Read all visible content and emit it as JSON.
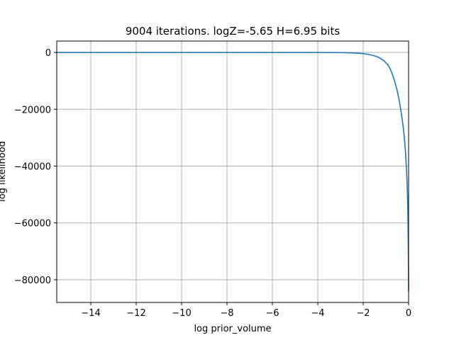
{
  "chart_data": {
    "type": "line",
    "title": "9004 iterations. logZ=-5.65 H=6.95 bits",
    "xlabel": "log prior_volume",
    "ylabel": "log likelihood",
    "xlim": [
      -15.5,
      0
    ],
    "ylim": [
      -88000,
      4000
    ],
    "xticks": [
      -14,
      -12,
      -10,
      -8,
      -6,
      -4,
      -2,
      0
    ],
    "xtick_labels": [
      "−14",
      "−12",
      "−10",
      "−8",
      "−6",
      "−4",
      "−2",
      "0"
    ],
    "yticks": [
      0,
      -20000,
      -40000,
      -60000,
      -80000
    ],
    "ytick_labels": [
      "0",
      "−20000",
      "−40000",
      "−60000",
      "−80000"
    ],
    "grid": true,
    "series": [
      {
        "color": "#1f77b4",
        "x": [
          -15.5,
          -14,
          -12,
          -10,
          -8,
          -6,
          -4,
          -3,
          -2.5,
          -2.0,
          -1.7,
          -1.5,
          -1.3,
          -1.1,
          -0.9,
          -0.8,
          -0.7,
          -0.6,
          -0.5,
          -0.4,
          -0.3,
          -0.25,
          -0.2,
          -0.15,
          -0.1,
          -0.07,
          -0.05,
          -0.03,
          -0.02,
          -0.01,
          0.0
        ],
        "y": [
          0,
          0,
          0,
          0,
          0,
          0,
          -5,
          -50,
          -150,
          -400,
          -800,
          -1200,
          -1800,
          -2800,
          -4500,
          -6000,
          -8000,
          -10500,
          -13500,
          -17500,
          -22500,
          -25500,
          -29000,
          -33500,
          -40000,
          -45000,
          -50000,
          -57000,
          -63000,
          -72000,
          -84000
        ]
      }
    ]
  }
}
